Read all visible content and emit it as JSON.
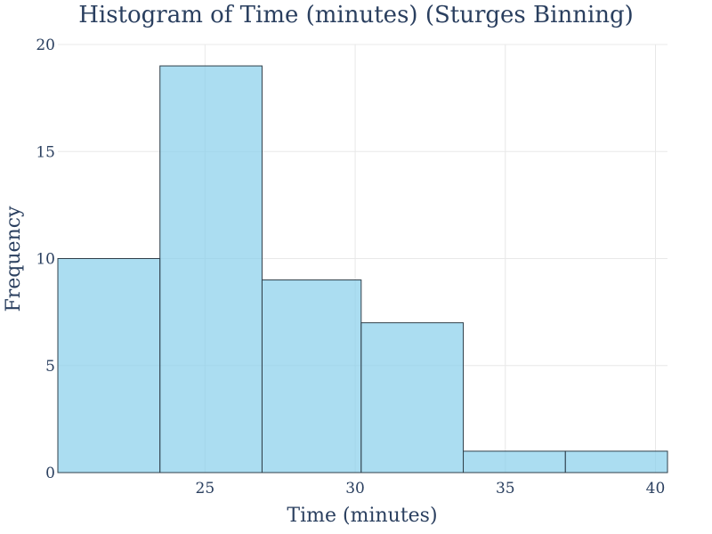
{
  "chart_data": {
    "type": "bar",
    "title": "Histogram of Time (minutes) (Sturges Binning)",
    "xlabel": "Time (minutes)",
    "ylabel": "Frequency",
    "bins": [
      {
        "start": 20.1,
        "end": 23.5,
        "count": 10
      },
      {
        "start": 23.5,
        "end": 26.9,
        "count": 19
      },
      {
        "start": 26.9,
        "end": 30.2,
        "count": 9
      },
      {
        "start": 30.2,
        "end": 33.6,
        "count": 7
      },
      {
        "start": 33.6,
        "end": 37.0,
        "count": 1
      },
      {
        "start": 37.0,
        "end": 40.4,
        "count": 1
      }
    ],
    "values": [
      10,
      19,
      9,
      7,
      1,
      1
    ],
    "xlim": [
      20.1,
      40.4
    ],
    "ylim": [
      0,
      20
    ],
    "x_ticks": [
      25,
      30,
      35,
      40
    ],
    "y_ticks": [
      0,
      5,
      10,
      15,
      20
    ],
    "grid": true,
    "colors": {
      "bar_fill": "#87CEEB",
      "bar_opacity": 0.7,
      "bar_stroke": "#2f3f4a",
      "grid": "#e8e8e8",
      "text": "#2a3f5f",
      "background": "#ffffff"
    }
  }
}
